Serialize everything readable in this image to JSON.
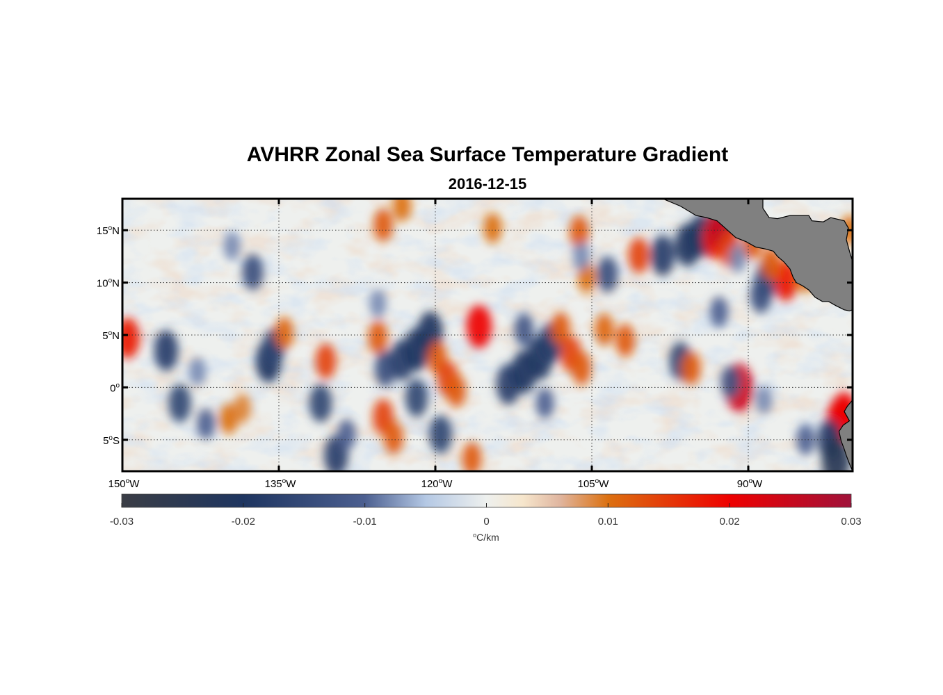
{
  "chart_data": {
    "type": "heatmap",
    "title": "AVHRR Zonal Sea Surface Temperature Gradient",
    "subtitle": "2016-12-15",
    "lon_range": [
      -150,
      -80
    ],
    "lat_range": [
      -8,
      18
    ],
    "x_ticks": [
      {
        "value": -150,
        "label": "150",
        "sup": "o",
        "suffix": "W"
      },
      {
        "value": -135,
        "label": "135",
        "sup": "o",
        "suffix": "W"
      },
      {
        "value": -120,
        "label": "120",
        "sup": "o",
        "suffix": "W"
      },
      {
        "value": -105,
        "label": "105",
        "sup": "o",
        "suffix": "W"
      },
      {
        "value": -90,
        "label": "90",
        "sup": "o",
        "suffix": "W"
      }
    ],
    "y_ticks": [
      {
        "value": 15,
        "label": "15",
        "sup": "o",
        "suffix": "N"
      },
      {
        "value": 10,
        "label": "10",
        "sup": "o",
        "suffix": "N"
      },
      {
        "value": 5,
        "label": "5",
        "sup": "o",
        "suffix": "N"
      },
      {
        "value": 0,
        "label": "0",
        "sup": "o",
        "suffix": ""
      },
      {
        "value": -5,
        "label": "5",
        "sup": "o",
        "suffix": "S"
      }
    ],
    "grid": true,
    "colorbar": {
      "placement": "bottom",
      "range": [
        -0.03,
        0.03
      ],
      "ticks": [
        {
          "value": -0.03,
          "label": "-0.03"
        },
        {
          "value": -0.02,
          "label": "-0.02"
        },
        {
          "value": -0.01,
          "label": "-0.01"
        },
        {
          "value": 0,
          "label": "0"
        },
        {
          "value": 0.01,
          "label": "0.01"
        },
        {
          "value": 0.02,
          "label": "0.02"
        },
        {
          "value": 0.03,
          "label": "0.03"
        }
      ],
      "label_sup": "o",
      "label": "C/km",
      "colormap": [
        {
          "value": -0.03,
          "color": "#3a3d45"
        },
        {
          "value": -0.02,
          "color": "#1e3560"
        },
        {
          "value": -0.01,
          "color": "#4c5f90"
        },
        {
          "value": -0.005,
          "color": "#b4c8e4"
        },
        {
          "value": 0,
          "color": "#eef0ee"
        },
        {
          "value": 0.003,
          "color": "#f6e6cc"
        },
        {
          "value": 0.006,
          "color": "#e0b6a0"
        },
        {
          "value": 0.01,
          "color": "#dc7010"
        },
        {
          "value": 0.02,
          "color": "#ee0000"
        },
        {
          "value": 0.03,
          "color": "#a0123a"
        }
      ]
    },
    "land_color": "#808080",
    "anomalies": [
      {
        "lon": -149.5,
        "lat": 4.7,
        "value": 0.018
      },
      {
        "lon": -145.8,
        "lat": 3.5,
        "value": -0.018
      },
      {
        "lon": -142.8,
        "lat": 1.5,
        "value": -0.008
      },
      {
        "lon": -144.5,
        "lat": -1.5,
        "value": -0.016
      },
      {
        "lon": -142,
        "lat": -3.5,
        "value": -0.01
      },
      {
        "lon": -139.5,
        "lat": 13.5,
        "value": -0.008
      },
      {
        "lon": -137.5,
        "lat": 11,
        "value": -0.014
      },
      {
        "lon": -136,
        "lat": 2.5,
        "value": -0.02
      },
      {
        "lon": -135.5,
        "lat": 3.8,
        "value": -0.016
      },
      {
        "lon": -139.8,
        "lat": -3,
        "value": 0.01
      },
      {
        "lon": -138.5,
        "lat": -2,
        "value": 0.009
      },
      {
        "lon": -134.5,
        "lat": 5.2,
        "value": 0.011
      },
      {
        "lon": -130.5,
        "lat": 2.5,
        "value": 0.014
      },
      {
        "lon": -131,
        "lat": -1.5,
        "value": -0.016
      },
      {
        "lon": -129.5,
        "lat": -6.5,
        "value": -0.018
      },
      {
        "lon": -128.5,
        "lat": -4.5,
        "value": -0.01
      },
      {
        "lon": -125,
        "lat": 15.5,
        "value": 0.012
      },
      {
        "lon": -125.5,
        "lat": 8,
        "value": -0.008
      },
      {
        "lon": -125.5,
        "lat": 4.8,
        "value": 0.012
      },
      {
        "lon": -124.8,
        "lat": 1.8,
        "value": -0.014
      },
      {
        "lon": -123.2,
        "lat": 2.6,
        "value": -0.018
      },
      {
        "lon": -121.8,
        "lat": 3.6,
        "value": -0.02
      },
      {
        "lon": -120.5,
        "lat": 5.2,
        "value": -0.02
      },
      {
        "lon": -125,
        "lat": -2.8,
        "value": 0.014
      },
      {
        "lon": -124,
        "lat": -4.8,
        "value": 0.012
      },
      {
        "lon": -123.2,
        "lat": 17.3,
        "value": 0.01
      },
      {
        "lon": -121.8,
        "lat": -1,
        "value": -0.016
      },
      {
        "lon": -119.8,
        "lat": 2.8,
        "value": 0.012
      },
      {
        "lon": -118.8,
        "lat": 0.8,
        "value": 0.014
      },
      {
        "lon": -118,
        "lat": -0.3,
        "value": 0.012
      },
      {
        "lon": -119.5,
        "lat": -4.5,
        "value": -0.016
      },
      {
        "lon": -116.5,
        "lat": -6.8,
        "value": 0.012
      },
      {
        "lon": -115.8,
        "lat": 5.8,
        "value": 0.02
      },
      {
        "lon": -114.5,
        "lat": 15.2,
        "value": 0.01
      },
      {
        "lon": -113,
        "lat": 0.3,
        "value": -0.018
      },
      {
        "lon": -111.5,
        "lat": 1.5,
        "value": -0.02
      },
      {
        "lon": -110,
        "lat": 2.8,
        "value": -0.02
      },
      {
        "lon": -109,
        "lat": 4.2,
        "value": -0.018
      },
      {
        "lon": -111.5,
        "lat": 5.5,
        "value": -0.012
      },
      {
        "lon": -108,
        "lat": 5.6,
        "value": 0.012
      },
      {
        "lon": -107,
        "lat": 3.2,
        "value": 0.014
      },
      {
        "lon": -106,
        "lat": 1.8,
        "value": 0.012
      },
      {
        "lon": -109.5,
        "lat": -1.5,
        "value": -0.01
      },
      {
        "lon": -106.2,
        "lat": 14.8,
        "value": 0.012
      },
      {
        "lon": -105.5,
        "lat": 10.5,
        "value": 0.01
      },
      {
        "lon": -106,
        "lat": 12.5,
        "value": -0.008
      },
      {
        "lon": -103.5,
        "lat": 10.8,
        "value": -0.014
      },
      {
        "lon": -103.8,
        "lat": 5.5,
        "value": 0.011
      },
      {
        "lon": -101.8,
        "lat": 4.5,
        "value": 0.012
      },
      {
        "lon": -100.5,
        "lat": 12.6,
        "value": 0.014
      },
      {
        "lon": -98.2,
        "lat": 12.6,
        "value": -0.018
      },
      {
        "lon": -96.5,
        "lat": 2.5,
        "value": -0.016
      },
      {
        "lon": -95.8,
        "lat": 13.6,
        "value": -0.02
      },
      {
        "lon": -94.5,
        "lat": 14.5,
        "value": -0.02
      },
      {
        "lon": -95.5,
        "lat": 1.8,
        "value": 0.012
      },
      {
        "lon": -93.2,
        "lat": 14.2,
        "value": 0.018
      },
      {
        "lon": -92.4,
        "lat": 15.6,
        "value": 0.026
      },
      {
        "lon": -91.8,
        "lat": 13.2,
        "value": 0.014
      },
      {
        "lon": -91,
        "lat": 12.3,
        "value": -0.008
      },
      {
        "lon": -89.6,
        "lat": 13.8,
        "value": 0.012
      },
      {
        "lon": -88.3,
        "lat": 10.2,
        "value": -0.016
      },
      {
        "lon": -88.8,
        "lat": 8.8,
        "value": -0.014
      },
      {
        "lon": -86.4,
        "lat": 10.2,
        "value": 0.018
      },
      {
        "lon": -87.8,
        "lat": 11.8,
        "value": 0.012
      },
      {
        "lon": -84.5,
        "lat": 10.5,
        "value": 0.01
      },
      {
        "lon": -92.8,
        "lat": 7.2,
        "value": -0.01
      },
      {
        "lon": -90.9,
        "lat": 0,
        "value": 0.024
      },
      {
        "lon": -91.7,
        "lat": 0.5,
        "value": -0.012
      },
      {
        "lon": -88.5,
        "lat": -1.2,
        "value": -0.008
      },
      {
        "lon": -81.2,
        "lat": -3.2,
        "value": 0.022
      },
      {
        "lon": -80.8,
        "lat": -2.5,
        "value": 0.02
      },
      {
        "lon": -82.2,
        "lat": -5,
        "value": -0.018
      },
      {
        "lon": -81.6,
        "lat": -7,
        "value": -0.024
      },
      {
        "lon": -84.5,
        "lat": -5,
        "value": -0.01
      },
      {
        "lon": -80.3,
        "lat": 15,
        "value": 0.01
      }
    ],
    "land": [
      {
        "name": "central-america-land",
        "points": [
          [
            -98.2,
            18
          ],
          [
            -96.5,
            17.3
          ],
          [
            -95,
            16.4
          ],
          [
            -94,
            16.2
          ],
          [
            -93,
            15.9
          ],
          [
            -92.1,
            15.1
          ],
          [
            -91.2,
            14.3
          ],
          [
            -90.2,
            13.9
          ],
          [
            -89.3,
            13.4
          ],
          [
            -88.3,
            13.2
          ],
          [
            -87.6,
            13
          ],
          [
            -87.2,
            12.5
          ],
          [
            -86.6,
            12
          ],
          [
            -86.0,
            11.3
          ],
          [
            -85.7,
            10.5
          ],
          [
            -85.4,
            10
          ],
          [
            -84.8,
            9.7
          ],
          [
            -84.2,
            9.3
          ],
          [
            -83.6,
            8.6
          ],
          [
            -82.9,
            8.2
          ],
          [
            -82.3,
            8.2
          ],
          [
            -81.6,
            7.8
          ],
          [
            -80.8,
            7.4
          ],
          [
            -80.3,
            7.3
          ],
          [
            -80,
            7.4
          ],
          [
            -80,
            12
          ],
          [
            -80.3,
            13
          ],
          [
            -80.6,
            14.1
          ],
          [
            -80.4,
            15.2
          ],
          [
            -80.8,
            15.9
          ],
          [
            -82.1,
            16.2
          ],
          [
            -82.8,
            15.8
          ],
          [
            -83.9,
            15.9
          ],
          [
            -84.2,
            16.4
          ],
          [
            -86.0,
            16.4
          ],
          [
            -87.2,
            16.1
          ],
          [
            -88.0,
            16.2
          ],
          [
            -88.6,
            17.1
          ],
          [
            -88.6,
            18
          ]
        ]
      },
      {
        "name": "south-america-land",
        "points": [
          [
            -80,
            -1.2
          ],
          [
            -80.5,
            -1.8
          ],
          [
            -80.8,
            -2.3
          ],
          [
            -80.3,
            -3.2
          ],
          [
            -80.9,
            -3.6
          ],
          [
            -81.3,
            -4.2
          ],
          [
            -81.1,
            -5.1
          ],
          [
            -80.8,
            -5.9
          ],
          [
            -80.6,
            -6.5
          ],
          [
            -80.3,
            -7.3
          ],
          [
            -80,
            -8
          ],
          [
            -80,
            -1.2
          ]
        ]
      }
    ]
  }
}
